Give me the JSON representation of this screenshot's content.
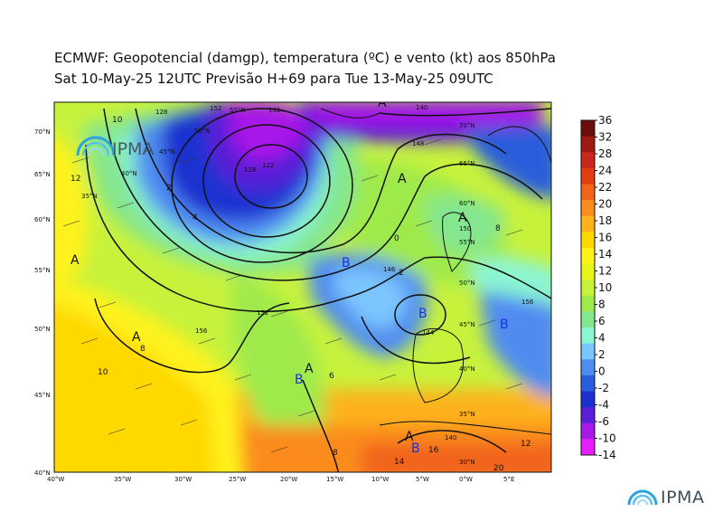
{
  "header": {
    "line1": "ECMWF:  Geopotencial (damgp), temperatura (ºC) e vento (kt) aos 850hPa",
    "line2": "Sat 10-May-25 12UTC Previsão H+69 para Tue 13-May-25 09UTC"
  },
  "branding": {
    "map_logo": "IPMA",
    "footer_logo": "IPMA"
  },
  "map": {
    "lat_labels": [
      "70°N",
      "65°N",
      "60°N",
      "55°N",
      "50°N",
      "45°N",
      "40°N"
    ],
    "lon_labels": [
      "40°W",
      "35°W",
      "30°W",
      "25°W",
      "20°W",
      "15°W",
      "10°W",
      "5°W",
      "0°W",
      "5°E"
    ],
    "inner_lat_labels": [
      "70°N",
      "65°N",
      "60°N",
      "55°N",
      "50°N",
      "45°N",
      "40°N",
      "35°N",
      "30°N"
    ],
    "inner_lat_labels_west": [
      "50°N",
      "45°N",
      "40°N",
      "35°N"
    ],
    "inner_lat_labels_top": [
      "55°N"
    ],
    "pressure_centers": [
      {
        "label": "A"
      },
      {
        "label": "A"
      },
      {
        "label": "A"
      },
      {
        "label": "A"
      },
      {
        "label": "A"
      },
      {
        "label": "A"
      },
      {
        "label": "A"
      },
      {
        "label": "B"
      },
      {
        "label": "B"
      },
      {
        "label": "B"
      },
      {
        "label": "B"
      },
      {
        "label": "B"
      }
    ],
    "contour_labels": [
      "152",
      "140",
      "128",
      "122",
      "132",
      "148",
      "150",
      "156",
      "146",
      "144",
      "152",
      "156",
      "140",
      "128"
    ],
    "isotherm_labels": [
      "12",
      "10",
      "8",
      "10",
      "2",
      "4",
      "6",
      "8",
      "0",
      "2",
      "14",
      "16",
      "20",
      "12",
      "8"
    ]
  },
  "colorbar": {
    "ticks": [
      "36",
      "32",
      "28",
      "24",
      "22",
      "20",
      "18",
      "16",
      "14",
      "12",
      "10",
      "8",
      "6",
      "4",
      "2",
      "0",
      "-2",
      "-4",
      "-6",
      "-10",
      "-14"
    ],
    "colors": [
      "#6b0f0a",
      "#9e1a12",
      "#c8281a",
      "#e63c14",
      "#f2641a",
      "#fb8c1e",
      "#fdb31c",
      "#ffd800",
      "#fff21a",
      "#e8f51a",
      "#c7f23c",
      "#9fea4c",
      "#84e68e",
      "#8cf5d2",
      "#7cc6ff",
      "#4f8cf0",
      "#2a5ddb",
      "#1c30d0",
      "#5a1ed8",
      "#a818e8",
      "#e61fff"
    ]
  }
}
